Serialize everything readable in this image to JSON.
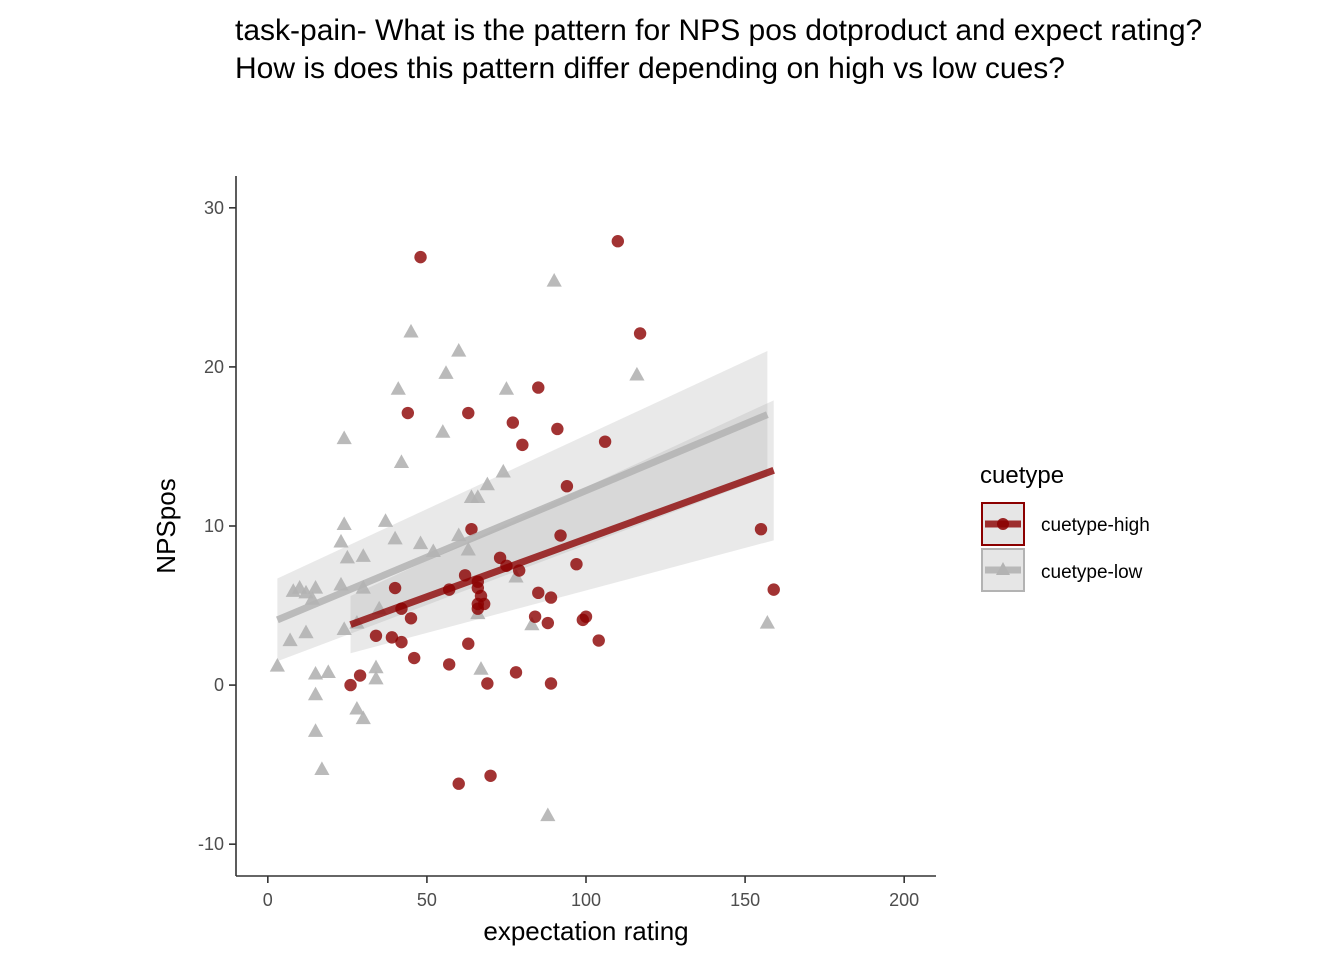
{
  "chart_data": {
    "type": "scatter",
    "title": "task-pain- What is the pattern for NPS pos dotproduct and expect rating? \nHow is does this pattern differ depending on high vs low cues?",
    "title_lines": [
      "task-pain- What is the pattern for NPS pos dotproduct and expect rating?",
      "How is does this pattern differ depending on high vs low cues?"
    ],
    "xlabel": "expectation rating",
    "ylabel": "NPSpos",
    "xlim": [
      -10,
      210
    ],
    "ylim": [
      -12,
      32
    ],
    "x_ticks": [
      0,
      50,
      100,
      150,
      200
    ],
    "y_ticks": [
      -10,
      0,
      10,
      20,
      30
    ],
    "grid": false,
    "legend": {
      "title": "cuetype",
      "position": "right",
      "entries": [
        {
          "label": "cuetype-high",
          "color": "#8b0000",
          "shape": "circle"
        },
        {
          "label": "cuetype-low",
          "color": "#b3b3b3",
          "shape": "triangle"
        }
      ]
    },
    "series": [
      {
        "name": "cuetype-high",
        "color": "#8b0000",
        "shape": "circle",
        "points": [
          [
            48,
            26.9
          ],
          [
            110,
            27.9
          ],
          [
            117,
            22.1
          ],
          [
            44,
            17.1
          ],
          [
            63,
            17.1
          ],
          [
            85,
            18.7
          ],
          [
            77,
            16.5
          ],
          [
            91,
            16.1
          ],
          [
            80,
            15.1
          ],
          [
            106,
            15.3
          ],
          [
            94,
            12.5
          ],
          [
            155,
            9.8
          ],
          [
            92,
            9.4
          ],
          [
            64,
            9.8
          ],
          [
            73,
            8.0
          ],
          [
            79,
            7.2
          ],
          [
            75,
            7.5
          ],
          [
            97,
            7.6
          ],
          [
            62,
            6.9
          ],
          [
            66,
            6.5
          ],
          [
            66,
            6.1
          ],
          [
            57,
            6.0
          ],
          [
            40,
            6.1
          ],
          [
            85,
            5.8
          ],
          [
            89,
            5.5
          ],
          [
            67,
            5.6
          ],
          [
            66,
            5.1
          ],
          [
            68,
            5.1
          ],
          [
            66,
            4.8
          ],
          [
            159,
            6.0
          ],
          [
            42,
            4.8
          ],
          [
            45,
            4.2
          ],
          [
            84,
            4.3
          ],
          [
            100,
            4.3
          ],
          [
            99,
            4.1
          ],
          [
            88,
            3.9
          ],
          [
            34,
            3.1
          ],
          [
            39,
            3.0
          ],
          [
            42,
            2.7
          ],
          [
            63,
            2.6
          ],
          [
            104,
            2.8
          ],
          [
            46,
            1.7
          ],
          [
            57,
            1.3
          ],
          [
            78,
            0.8
          ],
          [
            29,
            0.6
          ],
          [
            26,
            0.0
          ],
          [
            69,
            0.1
          ],
          [
            89,
            0.1
          ],
          [
            70,
            -5.7
          ],
          [
            60,
            -6.2
          ]
        ],
        "fit_line": {
          "x": [
            26,
            159
          ],
          "y": [
            3.8,
            13.5
          ]
        },
        "ci_band": {
          "x": [
            26,
            159
          ],
          "lower": [
            2.0,
            9.1
          ],
          "upper": [
            5.6,
            17.9
          ]
        }
      },
      {
        "name": "cuetype-low",
        "color": "#b3b3b3",
        "shape": "triangle",
        "points": [
          [
            90,
            25.4
          ],
          [
            45,
            22.2
          ],
          [
            60,
            21.0
          ],
          [
            116,
            19.5
          ],
          [
            56,
            19.6
          ],
          [
            41,
            18.6
          ],
          [
            75,
            18.6
          ],
          [
            24,
            15.5
          ],
          [
            55,
            15.9
          ],
          [
            42,
            14.0
          ],
          [
            74,
            13.4
          ],
          [
            69,
            12.6
          ],
          [
            66,
            11.8
          ],
          [
            64,
            11.8
          ],
          [
            24,
            10.1
          ],
          [
            37,
            10.3
          ],
          [
            23,
            9.0
          ],
          [
            40,
            9.2
          ],
          [
            60,
            9.4
          ],
          [
            48,
            8.9
          ],
          [
            52,
            8.4
          ],
          [
            63,
            8.5
          ],
          [
            25,
            8.0
          ],
          [
            30,
            8.1
          ],
          [
            78,
            6.8
          ],
          [
            8,
            5.9
          ],
          [
            12,
            5.8
          ],
          [
            15,
            6.1
          ],
          [
            23,
            6.3
          ],
          [
            14,
            5.4
          ],
          [
            30,
            6.1
          ],
          [
            10,
            6.1
          ],
          [
            35,
            4.8
          ],
          [
            66,
            4.5
          ],
          [
            83,
            3.8
          ],
          [
            24,
            3.5
          ],
          [
            28,
            3.9
          ],
          [
            12,
            3.3
          ],
          [
            7,
            2.8
          ],
          [
            34,
            1.1
          ],
          [
            3,
            1.2
          ],
          [
            15,
            0.7
          ],
          [
            19,
            0.8
          ],
          [
            67,
            1.0
          ],
          [
            34,
            0.4
          ],
          [
            15,
            -0.6
          ],
          [
            28,
            -1.5
          ],
          [
            30,
            -2.1
          ],
          [
            15,
            -2.9
          ],
          [
            17,
            -5.3
          ],
          [
            88,
            -8.2
          ],
          [
            157,
            3.9
          ]
        ],
        "fit_line": {
          "x": [
            3,
            157
          ],
          "y": [
            4.1,
            17.0
          ]
        },
        "ci_band": {
          "x": [
            3,
            157
          ],
          "lower": [
            1.5,
            13.1
          ],
          "upper": [
            6.7,
            21.0
          ]
        }
      }
    ]
  }
}
